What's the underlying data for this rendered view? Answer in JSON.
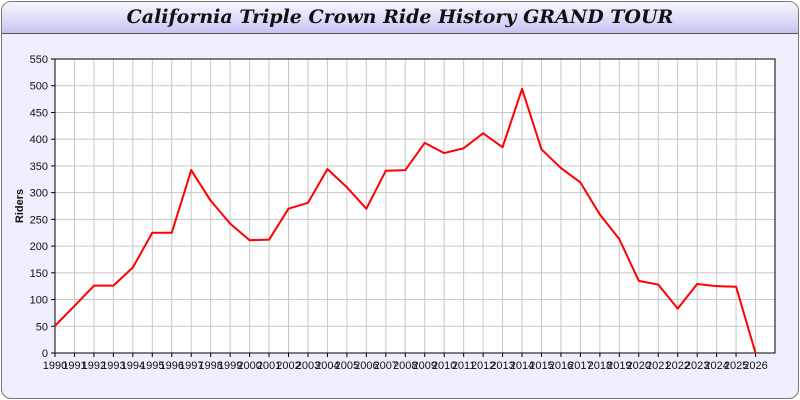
{
  "chart_data": {
    "type": "line",
    "title": "California Triple Crown Ride History GRAND TOUR",
    "xlabel": "",
    "ylabel": "Riders",
    "xlim": [
      1990,
      2027
    ],
    "ylim": [
      0,
      550
    ],
    "yticks": [
      0,
      50,
      100,
      150,
      200,
      250,
      300,
      350,
      400,
      450,
      500,
      550
    ],
    "grid": true,
    "series": [
      {
        "color": "#ff0000",
        "x": [
          1990,
          1991,
          1992,
          1993,
          1994,
          1995,
          1996,
          1997,
          1998,
          1999,
          2000,
          2001,
          2002,
          2003,
          2004,
          2005,
          2006,
          2007,
          2008,
          2009,
          2010,
          2011,
          2012,
          2013,
          2014,
          2015,
          2016,
          2017,
          2018,
          2019,
          2020,
          2021,
          2022,
          2023,
          2024,
          2025,
          2026
        ],
        "values": [
          51,
          88,
          126,
          126,
          160,
          225,
          225,
          342,
          285,
          242,
          211,
          212,
          270,
          281,
          344,
          310,
          270,
          341,
          342,
          393,
          374,
          383,
          411,
          385,
          494,
          381,
          346,
          319,
          259,
          213,
          135,
          128,
          83,
          129,
          125,
          124,
          0
        ]
      }
    ]
  }
}
